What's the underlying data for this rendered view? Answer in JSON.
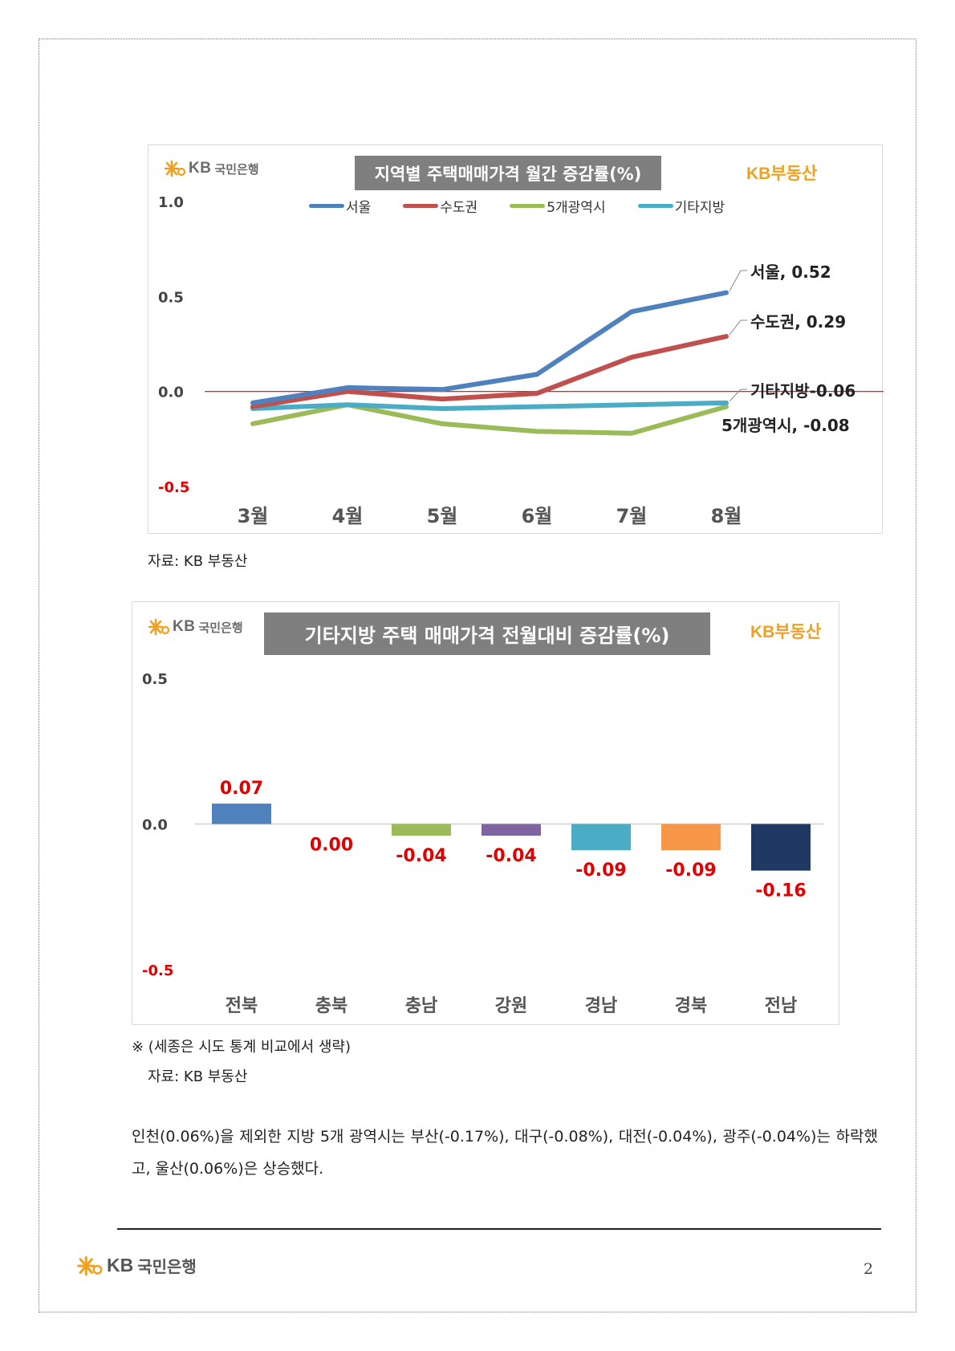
{
  "brand": {
    "logo_kb": "KB",
    "logo_bank": "국민은행",
    "realestate": "KB부동산"
  },
  "chart1": {
    "title": "지역별 주택매매가격 월간 증감률(%)",
    "source": "자료: KB 부동산"
  },
  "chart2": {
    "title": "기타지방 주택 매매가격 전월대비 증감률(%)",
    "note": "※ (세종은 시도 통계 비교에서 생략)",
    "source": "자료: KB 부동산"
  },
  "body": {
    "paragraph": "인천(0.06%)을 제외한 지방 5개 광역시는 부산(-0.17%), 대구(-0.08%), 대전(-0.04%), 광주(-0.04%)는 하락했고, 울산(0.06%)은 상승했다."
  },
  "footer": {
    "page": "2"
  },
  "chart_data": [
    {
      "type": "line",
      "title": "지역별 주택매매가격 월간 증감률(%)",
      "categories": [
        "3월",
        "4월",
        "5월",
        "6월",
        "7월",
        "8월"
      ],
      "ylim": [
        -0.5,
        1.0
      ],
      "yticks": [
        "1.0",
        "0.5",
        "0.0",
        "-0.5"
      ],
      "legend_position": "top",
      "series": [
        {
          "name": "서울",
          "color": "#4f81bd",
          "values": [
            -0.06,
            0.02,
            0.01,
            0.09,
            0.42,
            0.52
          ],
          "end_label": "서울, 0.52"
        },
        {
          "name": "수도권",
          "color": "#c0504d",
          "values": [
            -0.08,
            0.0,
            -0.04,
            -0.01,
            0.18,
            0.29
          ],
          "end_label": "수도권, 0.29"
        },
        {
          "name": "5개광역시",
          "color": "#9bbb59",
          "values": [
            -0.17,
            -0.07,
            -0.17,
            -0.21,
            -0.22,
            -0.08
          ],
          "end_label": "5개광역시, -0.08"
        },
        {
          "name": "기타지방",
          "color": "#4bacc6",
          "values": [
            -0.09,
            -0.07,
            -0.09,
            -0.08,
            -0.07,
            -0.06
          ],
          "end_label": "기타지방-0.06"
        }
      ]
    },
    {
      "type": "bar",
      "title": "기타지방 주택 매매가격 전월대비 증감률(%)",
      "categories": [
        "전북",
        "충북",
        "충남",
        "강원",
        "경남",
        "경북",
        "전남"
      ],
      "values": [
        0.07,
        0.0,
        -0.04,
        -0.04,
        -0.09,
        -0.09,
        -0.16
      ],
      "value_labels": [
        "0.07",
        "0.00",
        "-0.04",
        "-0.04",
        "-0.09",
        "-0.09",
        "-0.16"
      ],
      "colors": [
        "#4f81bd",
        "#c0504d",
        "#9bbb59",
        "#8064a2",
        "#4bacc6",
        "#f79646",
        "#1f3864"
      ],
      "ylim": [
        -0.5,
        0.5
      ],
      "yticks": [
        "0.5",
        "0.0",
        "-0.5"
      ]
    }
  ]
}
